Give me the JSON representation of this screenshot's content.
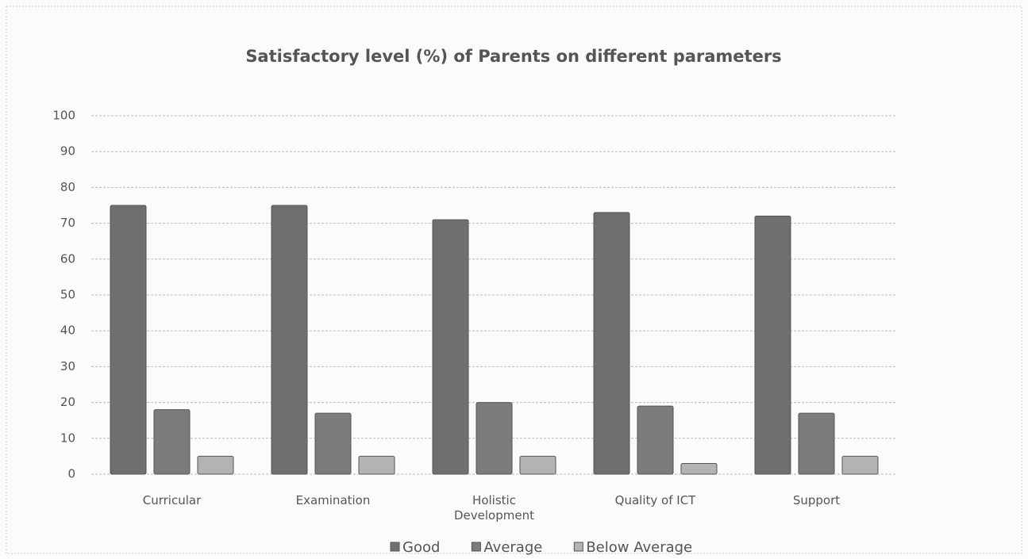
{
  "chart_data": {
    "type": "bar",
    "title": "Satisfactory level (%) of Parents on different parameters",
    "categories": [
      "Curricular",
      "Examination",
      "Holistic Development",
      "Quality of ICT",
      "Support"
    ],
    "series": [
      {
        "name": "Good",
        "color": "#6f6f6f",
        "values": [
          75,
          75,
          71,
          73,
          72
        ]
      },
      {
        "name": "Average",
        "color": "#7c7c7c",
        "values": [
          18,
          17,
          20,
          19,
          17
        ]
      },
      {
        "name": "Below Average",
        "color": "#b3b3b3",
        "values": [
          5,
          5,
          5,
          3,
          5
        ]
      }
    ],
    "ylim": [
      0,
      100
    ],
    "yticks": [
      0,
      10,
      20,
      30,
      40,
      50,
      60,
      70,
      80,
      90,
      100
    ],
    "grid": true,
    "legend": "bottom"
  }
}
